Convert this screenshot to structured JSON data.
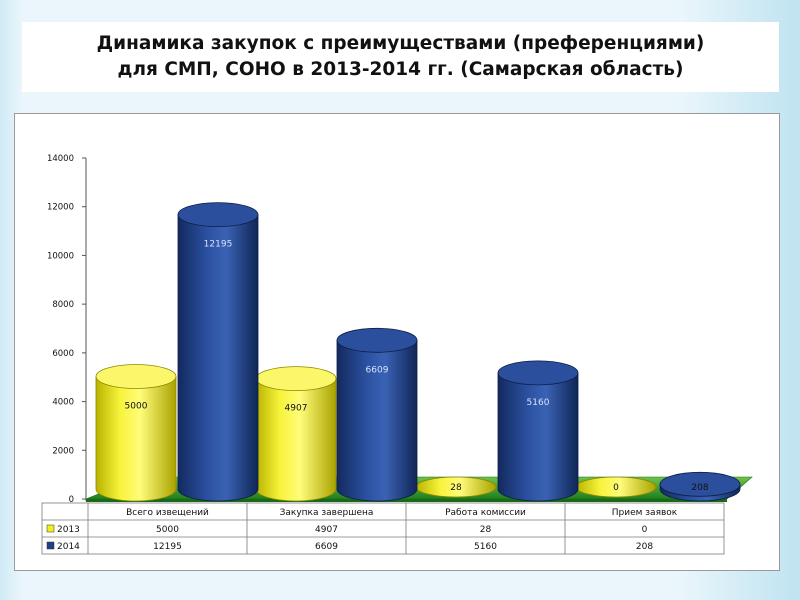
{
  "title": {
    "line1": "Динамика закупок с преимуществами (преференциями)",
    "line2": "для СМП, СОНО в 2013-2014 гг. (Самарская область)"
  },
  "colors": {
    "series_2013": "#f2ee1a",
    "series_2014": "#1f3f86",
    "floor": "#2e9a2a"
  },
  "chart_data": {
    "type": "bar",
    "categories": [
      "Всего извещений",
      "Закупка завершена",
      "Работа комиссии",
      "Прием заявок"
    ],
    "series": [
      {
        "name": "2013",
        "values": [
          5000,
          4907,
          28,
          0
        ]
      },
      {
        "name": "2014",
        "values": [
          12195,
          6609,
          5160,
          208
        ]
      }
    ],
    "ylim": [
      0,
      14000
    ],
    "yticks": [
      "0",
      "2000",
      "4000",
      "6000",
      "8000",
      "10000",
      "12000",
      "14000"
    ],
    "data_labels": [
      [
        "5000",
        "4907",
        "28",
        "0"
      ],
      [
        "12195",
        "6609",
        "5160",
        "208"
      ]
    ],
    "table": {
      "rows": [
        {
          "label": "2013",
          "cells": [
            "5000",
            "4907",
            "28",
            "0"
          ]
        },
        {
          "label": "2014",
          "cells": [
            "12195",
            "6609",
            "5160",
            "208"
          ]
        }
      ]
    },
    "style": "3d-cylinder",
    "grid": false,
    "legend": "in-data-table"
  }
}
